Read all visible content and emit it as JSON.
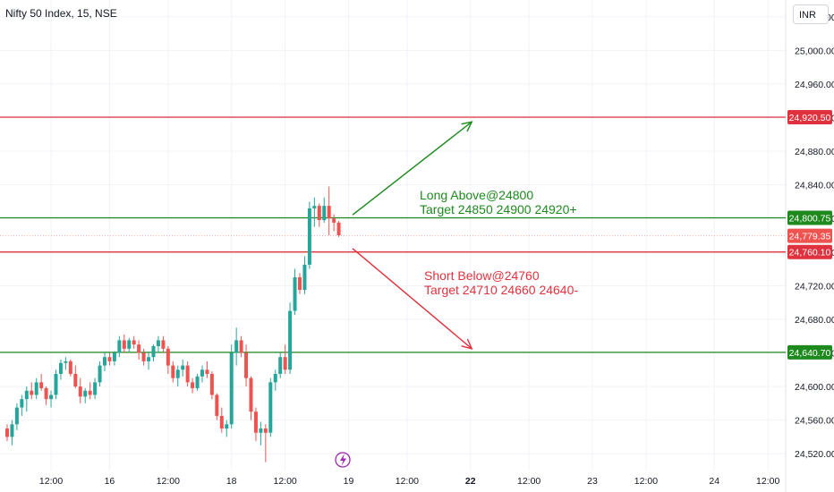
{
  "header": {
    "title": "Nifty 50 Index, 15, NSE",
    "currency": "INR"
  },
  "annotations": {
    "long_line1": "Long Above@24800",
    "long_line2": "Target 24850 24900 24920+",
    "short_line1": "Short Below@24760",
    "short_line2": "Target 24710 24660 24640-"
  },
  "colors": {
    "up": "#26a69a",
    "down": "#ef5350",
    "long": "#1e8a1e",
    "short": "#e0323e",
    "grid": "#f0f3fa",
    "axis_text": "#131722"
  },
  "chart_data": {
    "type": "candlestick",
    "ylim": [
      24500,
      25060
    ],
    "y_ticks": [
      24520,
      24560,
      24600,
      24640,
      24680,
      24720,
      24760,
      24800,
      24840,
      24880,
      24920,
      24960,
      25000,
      25040
    ],
    "y_tick_labels": [
      "24,520.00",
      "24,560.00",
      "24,600.00",
      "24,640.00",
      "24,680.00",
      "24,720.00",
      "24,760.00",
      "24,800.00",
      "24,840.00",
      "24,880.00",
      "24,920.00",
      "24,960.00",
      "25,000.00",
      "25,040.00"
    ],
    "x_ticks": [
      {
        "label": "12:00",
        "index": 9
      },
      {
        "label": "16",
        "index": 21
      },
      {
        "label": "12:00",
        "index": 33
      },
      {
        "label": "18",
        "index": 46
      },
      {
        "label": "12:00",
        "index": 57
      },
      {
        "label": "19",
        "index": 70
      },
      {
        "label": "12:00",
        "index": 82
      },
      {
        "label": "22",
        "index": 95
      },
      {
        "label": "12:00",
        "index": 107
      },
      {
        "label": "23",
        "index": 120
      },
      {
        "label": "12:00",
        "index": 131
      },
      {
        "label": "24",
        "index": 145
      },
      {
        "label": "12:00",
        "index": 156
      }
    ],
    "candles": [
      [
        24550,
        24555,
        24535,
        24540
      ],
      [
        24540,
        24560,
        24530,
        24555
      ],
      [
        24555,
        24580,
        24548,
        24575
      ],
      [
        24575,
        24590,
        24565,
        24585
      ],
      [
        24585,
        24600,
        24570,
        24595
      ],
      [
        24595,
        24605,
        24585,
        24590
      ],
      [
        24590,
        24610,
        24585,
        24605
      ],
      [
        24605,
        24615,
        24595,
        24598
      ],
      [
        24598,
        24600,
        24578,
        24585
      ],
      [
        24585,
        24595,
        24575,
        24590
      ],
      [
        24590,
        24620,
        24585,
        24615
      ],
      [
        24615,
        24632,
        24608,
        24628
      ],
      [
        24628,
        24635,
        24620,
        24630
      ],
      [
        24630,
        24632,
        24612,
        24615
      ],
      [
        24615,
        24625,
        24598,
        24600
      ],
      [
        24600,
        24610,
        24580,
        24588
      ],
      [
        24588,
        24598,
        24580,
        24595
      ],
      [
        24595,
        24605,
        24585,
        24590
      ],
      [
        24590,
        24610,
        24585,
        24605
      ],
      [
        24605,
        24630,
        24600,
        24625
      ],
      [
        24625,
        24640,
        24618,
        24635
      ],
      [
        24635,
        24640,
        24625,
        24630
      ],
      [
        24630,
        24642,
        24625,
        24640
      ],
      [
        24640,
        24660,
        24635,
        24655
      ],
      [
        24655,
        24662,
        24640,
        24645
      ],
      [
        24645,
        24658,
        24640,
        24655
      ],
      [
        24655,
        24660,
        24645,
        24650
      ],
      [
        24650,
        24655,
        24632,
        24640
      ],
      [
        24640,
        24645,
        24625,
        24630
      ],
      [
        24630,
        24640,
        24620,
        24635
      ],
      [
        24635,
        24650,
        24630,
        24648
      ],
      [
        24648,
        24660,
        24640,
        24655
      ],
      [
        24655,
        24660,
        24640,
        24645
      ],
      [
        24645,
        24648,
        24615,
        24625
      ],
      [
        24625,
        24630,
        24605,
        24610
      ],
      [
        24610,
        24625,
        24600,
        24620
      ],
      [
        24620,
        24632,
        24612,
        24625
      ],
      [
        24625,
        24630,
        24600,
        24605
      ],
      [
        24605,
        24610,
        24592,
        24598
      ],
      [
        24598,
        24615,
        24595,
        24612
      ],
      [
        24612,
        24625,
        24605,
        24620
      ],
      [
        24620,
        24630,
        24610,
        24615
      ],
      [
        24615,
        24618,
        24585,
        24590
      ],
      [
        24590,
        24592,
        24560,
        24565
      ],
      [
        24565,
        24575,
        24545,
        24550
      ],
      [
        24550,
        24560,
        24540,
        24555
      ],
      [
        24555,
        24650,
        24550,
        24640
      ],
      [
        24640,
        24670,
        24625,
        24655
      ],
      [
        24655,
        24660,
        24635,
        24640
      ],
      [
        24640,
        24650,
        24600,
        24610
      ],
      [
        24610,
        24612,
        24560,
        24570
      ],
      [
        24570,
        24575,
        24535,
        24545
      ],
      [
        24545,
        24558,
        24530,
        24550
      ],
      [
        24550,
        24555,
        24510,
        24545
      ],
      [
        24545,
        24610,
        24540,
        24605
      ],
      [
        24605,
        24620,
        24595,
        24615
      ],
      [
        24615,
        24640,
        24610,
        24635
      ],
      [
        24635,
        24650,
        24615,
        24620
      ],
      [
        24620,
        24700,
        24615,
        24690
      ],
      [
        24690,
        24740,
        24685,
        24730
      ],
      [
        24730,
        24735,
        24710,
        24715
      ],
      [
        24715,
        24755,
        24710,
        24745
      ],
      [
        24745,
        24820,
        24740,
        24812
      ],
      [
        24812,
        24825,
        24790,
        24815
      ],
      [
        24815,
        24818,
        24790,
        24798
      ],
      [
        24798,
        24825,
        24795,
        24815
      ],
      [
        24815,
        24838,
        24780,
        24800
      ],
      [
        24800,
        24805,
        24785,
        24795
      ],
      [
        24795,
        24797,
        24778,
        24780
      ]
    ],
    "levels": [
      {
        "value": 24920.5,
        "label": "24,920.50",
        "color": "#e0323e"
      },
      {
        "value": 24800.75,
        "label": "24,800.75",
        "color": "#1e8a1e"
      },
      {
        "value": 24779.35,
        "label": "24,779.35",
        "color": "#ef5350"
      },
      {
        "value": 24760.1,
        "label": "24,760.10",
        "color": "#e0323e"
      },
      {
        "value": 24640.7,
        "label": "24,640.70",
        "color": "#1e8a1e"
      }
    ],
    "arrows": [
      {
        "from": [
          24800,
          69
        ],
        "to": [
          24915,
          85
        ],
        "color": "#1e8a1e"
      },
      {
        "from": [
          24760,
          69
        ],
        "to": [
          24645,
          85
        ],
        "color": "#e0323e"
      }
    ]
  }
}
